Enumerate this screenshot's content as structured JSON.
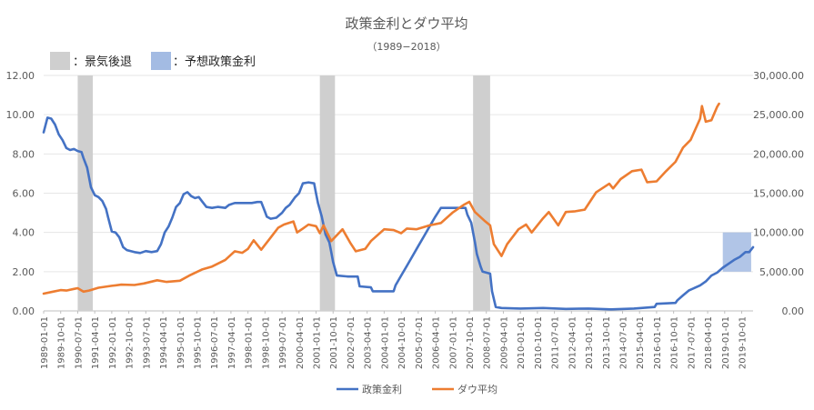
{
  "chart_data": {
    "type": "line",
    "title": "政策金利とダウ平均",
    "subtitle": "（1989−2018）",
    "legend_boxes": [
      {
        "label": "：景気後退",
        "color": "#cfcfcf"
      },
      {
        "label": "：予想政策金利",
        "color": "#a3bbe3"
      }
    ],
    "y_left": {
      "min": 0,
      "max": 12,
      "ticks": [
        "0.00",
        "2.00",
        "4.00",
        "6.00",
        "8.00",
        "10.00",
        "12.00"
      ]
    },
    "y_right": {
      "min": 0,
      "max": 30000,
      "ticks": [
        "0.00",
        "5,000.00",
        "10,000.00",
        "15,000.00",
        "20,000.00",
        "25,000.00",
        "30,000.00"
      ]
    },
    "x_range": [
      "1989-01-01",
      "2020-04-01"
    ],
    "x_tick_labels": [
      "1989-01-01",
      "1989-10-01",
      "1990-07-01",
      "1991-04-01",
      "1992-01-01",
      "1992-10-01",
      "1993-07-01",
      "1994-04-01",
      "1995-01-01",
      "1995-10-01",
      "1996-07-01",
      "1997-04-01",
      "1998-01-01",
      "1998-10-01",
      "1999-07-01",
      "2000-04-01",
      "2001-01-01",
      "2001-10-01",
      "2002-07-01",
      "2003-04-01",
      "2004-01-01",
      "2004-10-01",
      "2005-07-01",
      "2006-04-01",
      "2007-01-01",
      "2007-10-01",
      "2008-07-01",
      "2009-04-01",
      "2010-01-01",
      "2010-10-01",
      "2011-07-01",
      "2012-04-01",
      "2013-01-01",
      "2013-10-01",
      "2014-07-01",
      "2015-04-01",
      "2016-01-01",
      "2016-10-01",
      "2017-07-01",
      "2018-04-01",
      "2019-01-01",
      "2019-10-01"
    ],
    "recessions": [
      {
        "start": "1990-07-01",
        "end": "1991-03-01"
      },
      {
        "start": "2001-03-01",
        "end": "2001-11-01"
      },
      {
        "start": "2007-12-01",
        "end": "2008-09-01"
      }
    ],
    "forecast_region": {
      "start": "2018-12-01",
      "end": "2020-03-01",
      "y_min": 2.0,
      "y_max": 4.0
    },
    "series": [
      {
        "name": "政策金利",
        "axis": "left",
        "color": "#4472c4",
        "points": [
          [
            "1989-01-01",
            9.1
          ],
          [
            "1989-03-01",
            9.85
          ],
          [
            "1989-05-01",
            9.8
          ],
          [
            "1989-07-01",
            9.5
          ],
          [
            "1989-09-01",
            9.0
          ],
          [
            "1989-11-01",
            8.7
          ],
          [
            "1990-01-01",
            8.3
          ],
          [
            "1990-03-01",
            8.2
          ],
          [
            "1990-05-01",
            8.25
          ],
          [
            "1990-07-01",
            8.15
          ],
          [
            "1990-09-01",
            8.1
          ],
          [
            "1990-10-01",
            7.8
          ],
          [
            "1990-12-01",
            7.3
          ],
          [
            "1991-02-01",
            6.3
          ],
          [
            "1991-04-01",
            5.9
          ],
          [
            "1991-06-01",
            5.8
          ],
          [
            "1991-08-01",
            5.6
          ],
          [
            "1991-10-01",
            5.2
          ],
          [
            "1991-11-01",
            4.8
          ],
          [
            "1992-01-01",
            4.05
          ],
          [
            "1992-03-01",
            4.0
          ],
          [
            "1992-05-01",
            3.75
          ],
          [
            "1992-07-01",
            3.25
          ],
          [
            "1992-09-01",
            3.1
          ],
          [
            "1993-01-01",
            3.0
          ],
          [
            "1993-04-01",
            2.95
          ],
          [
            "1993-07-01",
            3.05
          ],
          [
            "1993-10-01",
            3.0
          ],
          [
            "1994-01-01",
            3.05
          ],
          [
            "1994-03-01",
            3.4
          ],
          [
            "1994-05-01",
            4.0
          ],
          [
            "1994-07-01",
            4.3
          ],
          [
            "1994-09-01",
            4.75
          ],
          [
            "1994-11-01",
            5.3
          ],
          [
            "1995-01-01",
            5.5
          ],
          [
            "1995-03-01",
            5.95
          ],
          [
            "1995-05-01",
            6.05
          ],
          [
            "1995-07-01",
            5.85
          ],
          [
            "1995-09-01",
            5.75
          ],
          [
            "1995-11-01",
            5.8
          ],
          [
            "1996-01-01",
            5.55
          ],
          [
            "1996-03-01",
            5.3
          ],
          [
            "1996-06-01",
            5.25
          ],
          [
            "1996-09-01",
            5.3
          ],
          [
            "1997-01-01",
            5.25
          ],
          [
            "1997-03-01",
            5.4
          ],
          [
            "1997-06-01",
            5.5
          ],
          [
            "1997-12-01",
            5.5
          ],
          [
            "1998-03-01",
            5.5
          ],
          [
            "1998-06-01",
            5.55
          ],
          [
            "1998-08-01",
            5.55
          ],
          [
            "1998-10-01",
            5.05
          ],
          [
            "1998-11-01",
            4.8
          ],
          [
            "1999-01-01",
            4.7
          ],
          [
            "1999-04-01",
            4.75
          ],
          [
            "1999-07-01",
            5.0
          ],
          [
            "1999-09-01",
            5.25
          ],
          [
            "1999-11-01",
            5.4
          ],
          [
            "2000-02-01",
            5.8
          ],
          [
            "2000-04-01",
            6.0
          ],
          [
            "2000-06-01",
            6.5
          ],
          [
            "2000-09-01",
            6.55
          ],
          [
            "2000-12-01",
            6.5
          ],
          [
            "2001-01-01",
            5.98
          ],
          [
            "2001-02-01",
            5.5
          ],
          [
            "2001-04-01",
            4.8
          ],
          [
            "2001-06-01",
            3.9
          ],
          [
            "2001-08-01",
            3.5
          ],
          [
            "2001-09-01",
            3.0
          ],
          [
            "2001-10-01",
            2.5
          ],
          [
            "2001-12-01",
            1.8
          ],
          [
            "2002-06-01",
            1.75
          ],
          [
            "2002-11-01",
            1.75
          ],
          [
            "2002-12-01",
            1.25
          ],
          [
            "2003-06-01",
            1.2
          ],
          [
            "2003-07-01",
            1.0
          ],
          [
            "2004-06-01",
            1.0
          ],
          [
            "2004-07-01",
            1.3
          ],
          [
            "2004-10-01",
            1.8
          ],
          [
            "2005-01-01",
            2.3
          ],
          [
            "2005-04-01",
            2.8
          ],
          [
            "2005-07-01",
            3.3
          ],
          [
            "2005-10-01",
            3.8
          ],
          [
            "2006-01-01",
            4.3
          ],
          [
            "2006-04-01",
            4.8
          ],
          [
            "2006-07-01",
            5.25
          ],
          [
            "2007-08-01",
            5.25
          ],
          [
            "2007-09-01",
            4.9
          ],
          [
            "2007-11-01",
            4.5
          ],
          [
            "2008-01-01",
            3.5
          ],
          [
            "2008-02-01",
            2.9
          ],
          [
            "2008-04-01",
            2.25
          ],
          [
            "2008-05-01",
            2.0
          ],
          [
            "2008-09-01",
            1.9
          ],
          [
            "2008-10-01",
            1.0
          ],
          [
            "2008-12-01",
            0.2
          ],
          [
            "2009-03-01",
            0.15
          ],
          [
            "2010-01-01",
            0.12
          ],
          [
            "2011-01-01",
            0.15
          ],
          [
            "2012-01-01",
            0.1
          ],
          [
            "2013-01-01",
            0.12
          ],
          [
            "2014-01-01",
            0.08
          ],
          [
            "2015-01-01",
            0.12
          ],
          [
            "2015-12-01",
            0.2
          ],
          [
            "2016-01-01",
            0.36
          ],
          [
            "2016-11-01",
            0.41
          ],
          [
            "2016-12-01",
            0.54
          ],
          [
            "2017-03-01",
            0.79
          ],
          [
            "2017-06-01",
            1.04
          ],
          [
            "2017-12-01",
            1.3
          ],
          [
            "2018-03-01",
            1.5
          ],
          [
            "2018-06-01",
            1.8
          ],
          [
            "2018-09-01",
            1.95
          ],
          [
            "2018-12-01",
            2.2
          ],
          [
            "2019-03-01",
            2.4
          ],
          [
            "2019-06-01",
            2.6
          ],
          [
            "2019-09-01",
            2.75
          ],
          [
            "2019-12-01",
            3.0
          ],
          [
            "2020-02-01",
            3.0
          ],
          [
            "2020-04-01",
            3.25
          ]
        ]
      },
      {
        "name": "ダウ平均",
        "axis": "right",
        "color": "#ed7d31",
        "points": [
          [
            "1989-01-01",
            2200
          ],
          [
            "1989-06-01",
            2450
          ],
          [
            "1989-10-01",
            2650
          ],
          [
            "1990-01-01",
            2600
          ],
          [
            "1990-05-01",
            2800
          ],
          [
            "1990-07-01",
            2900
          ],
          [
            "1990-10-01",
            2450
          ],
          [
            "1991-01-01",
            2600
          ],
          [
            "1991-06-01",
            2950
          ],
          [
            "1992-01-01",
            3200
          ],
          [
            "1992-06-01",
            3350
          ],
          [
            "1993-01-01",
            3300
          ],
          [
            "1993-06-01",
            3500
          ],
          [
            "1994-01-01",
            3900
          ],
          [
            "1994-06-01",
            3700
          ],
          [
            "1995-01-01",
            3850
          ],
          [
            "1995-06-01",
            4500
          ],
          [
            "1996-01-01",
            5300
          ],
          [
            "1996-06-01",
            5650
          ],
          [
            "1997-01-01",
            6500
          ],
          [
            "1997-06-01",
            7600
          ],
          [
            "1997-10-01",
            7400
          ],
          [
            "1998-01-01",
            7900
          ],
          [
            "1998-04-01",
            9000
          ],
          [
            "1998-08-01",
            7800
          ],
          [
            "1999-01-01",
            9350
          ],
          [
            "1999-05-01",
            10600
          ],
          [
            "1999-08-01",
            11000
          ],
          [
            "2000-01-01",
            11400
          ],
          [
            "2000-03-01",
            10000
          ],
          [
            "2000-06-01",
            10500
          ],
          [
            "2000-09-01",
            11000
          ],
          [
            "2001-01-01",
            10800
          ],
          [
            "2001-03-01",
            9900
          ],
          [
            "2001-05-01",
            10900
          ],
          [
            "2001-09-01",
            8900
          ],
          [
            "2002-01-01",
            9900
          ],
          [
            "2002-03-01",
            10400
          ],
          [
            "2002-07-01",
            8700
          ],
          [
            "2002-10-01",
            7600
          ],
          [
            "2003-03-01",
            7900
          ],
          [
            "2003-06-01",
            8900
          ],
          [
            "2004-01-01",
            10400
          ],
          [
            "2004-06-01",
            10300
          ],
          [
            "2004-10-01",
            9900
          ],
          [
            "2005-01-01",
            10500
          ],
          [
            "2005-06-01",
            10400
          ],
          [
            "2006-01-01",
            10900
          ],
          [
            "2006-07-01",
            11200
          ],
          [
            "2007-01-01",
            12500
          ],
          [
            "2007-07-01",
            13500
          ],
          [
            "2007-10-01",
            13900
          ],
          [
            "2008-01-01",
            12600
          ],
          [
            "2008-06-01",
            11500
          ],
          [
            "2008-09-01",
            10900
          ],
          [
            "2008-11-01",
            8500
          ],
          [
            "2009-03-01",
            7000
          ],
          [
            "2009-06-01",
            8500
          ],
          [
            "2009-12-01",
            10400
          ],
          [
            "2010-04-01",
            11000
          ],
          [
            "2010-07-01",
            10000
          ],
          [
            "2011-01-01",
            11800
          ],
          [
            "2011-04-01",
            12600
          ],
          [
            "2011-09-01",
            10900
          ],
          [
            "2012-01-01",
            12600
          ],
          [
            "2012-06-01",
            12700
          ],
          [
            "2012-11-01",
            12900
          ],
          [
            "2013-05-01",
            15100
          ],
          [
            "2013-12-01",
            16200
          ],
          [
            "2014-02-01",
            15600
          ],
          [
            "2014-06-01",
            16800
          ],
          [
            "2014-12-01",
            17800
          ],
          [
            "2015-05-01",
            18000
          ],
          [
            "2015-08-01",
            16400
          ],
          [
            "2016-01-01",
            16500
          ],
          [
            "2016-06-01",
            17800
          ],
          [
            "2016-11-01",
            19000
          ],
          [
            "2017-03-01",
            20800
          ],
          [
            "2017-07-01",
            21800
          ],
          [
            "2017-12-01",
            24500
          ],
          [
            "2018-01-01",
            26100
          ],
          [
            "2018-03-01",
            24100
          ],
          [
            "2018-06-01",
            24300
          ],
          [
            "2018-09-01",
            26000
          ],
          [
            "2018-10-01",
            26400
          ]
        ]
      }
    ]
  }
}
